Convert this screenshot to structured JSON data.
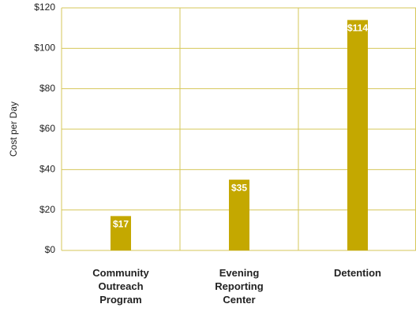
{
  "chart_data": {
    "type": "bar",
    "y_label": "Cost per Day",
    "categories": [
      "Community Outreach Program",
      "Evening Reporting Center",
      "Detention"
    ],
    "values": [
      17,
      35,
      114
    ],
    "value_labels": [
      "$17",
      "$35",
      "$114"
    ],
    "color": "#c4a800",
    "ylim": [
      0,
      120
    ],
    "yticks": [
      {
        "value": 0,
        "label": "$0"
      },
      {
        "value": 20,
        "label": "$20"
      },
      {
        "value": 40,
        "label": "$40"
      },
      {
        "value": 60,
        "label": "$60"
      },
      {
        "value": 80,
        "label": "$80"
      },
      {
        "value": 100,
        "label": "$100"
      },
      {
        "value": 120,
        "label": "$120"
      }
    ],
    "grid": true
  }
}
